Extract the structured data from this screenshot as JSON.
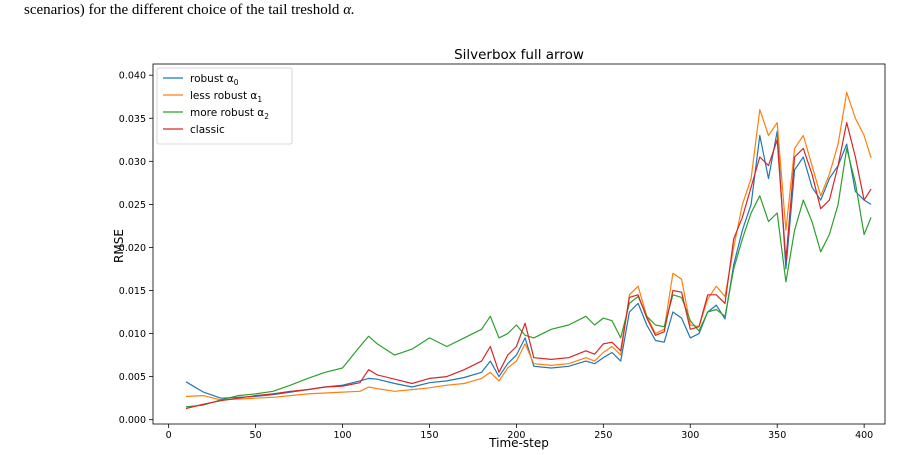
{
  "caption": {
    "text": "scenarios) for the different choice of the tail treshold",
    "symbol": "α."
  },
  "chart_data": {
    "type": "line",
    "title": "Silverbox full arrow",
    "xlabel": "Time-step",
    "ylabel": "RMSE",
    "xlim": [
      -9,
      412
    ],
    "ylim": [
      -0.0005,
      0.0413
    ],
    "xticks": [
      0,
      50,
      100,
      150,
      200,
      250,
      300,
      350,
      400
    ],
    "xtick_labels": [
      "0",
      "50",
      "100",
      "150",
      "200",
      "250",
      "300",
      "350",
      "400"
    ],
    "yticks": [
      0.0,
      0.005,
      0.01,
      0.015,
      0.02,
      0.025,
      0.03,
      0.035,
      0.04
    ],
    "ytick_labels": [
      "0.000",
      "0.005",
      "0.010",
      "0.015",
      "0.020",
      "0.025",
      "0.030",
      "0.035",
      "0.040"
    ],
    "grid": false,
    "legend_position": "upper-left",
    "x": [
      10,
      20,
      30,
      40,
      50,
      60,
      70,
      80,
      90,
      100,
      110,
      115,
      120,
      130,
      140,
      150,
      160,
      170,
      180,
      185,
      190,
      195,
      200,
      205,
      210,
      220,
      230,
      240,
      245,
      250,
      255,
      260,
      265,
      270,
      275,
      280,
      285,
      290,
      295,
      300,
      305,
      310,
      315,
      320,
      325,
      330,
      335,
      340,
      345,
      350,
      355,
      360,
      365,
      370,
      375,
      380,
      385,
      390,
      395,
      400,
      404
    ],
    "series": [
      {
        "name": "robust α",
        "name_sub": "0",
        "color": "#1f77b4",
        "values": [
          0.0044,
          0.0032,
          0.0025,
          0.0026,
          0.0027,
          0.0029,
          0.0032,
          0.0035,
          0.0038,
          0.004,
          0.0045,
          0.0048,
          0.0047,
          0.0042,
          0.0038,
          0.0043,
          0.0045,
          0.0049,
          0.0055,
          0.0068,
          0.005,
          0.0065,
          0.0075,
          0.0095,
          0.0062,
          0.006,
          0.0062,
          0.0068,
          0.0065,
          0.0072,
          0.0078,
          0.0068,
          0.0125,
          0.0135,
          0.011,
          0.0092,
          0.009,
          0.0125,
          0.0118,
          0.0095,
          0.01,
          0.0125,
          0.0133,
          0.0117,
          0.018,
          0.022,
          0.025,
          0.033,
          0.028,
          0.0335,
          0.0175,
          0.029,
          0.0305,
          0.027,
          0.0255,
          0.028,
          0.0295,
          0.032,
          0.0265,
          0.0255,
          0.025
        ]
      },
      {
        "name": "less robust α",
        "name_sub": "1",
        "color": "#ff7f0e",
        "values": [
          0.0027,
          0.0028,
          0.0023,
          0.0024,
          0.0025,
          0.0026,
          0.0028,
          0.003,
          0.0031,
          0.0032,
          0.0033,
          0.0038,
          0.0036,
          0.0033,
          0.0035,
          0.0037,
          0.004,
          0.0042,
          0.0048,
          0.0055,
          0.0045,
          0.006,
          0.0068,
          0.0088,
          0.0065,
          0.0063,
          0.0065,
          0.0072,
          0.0068,
          0.0078,
          0.0085,
          0.0075,
          0.0145,
          0.0155,
          0.012,
          0.01,
          0.0105,
          0.017,
          0.0163,
          0.011,
          0.0108,
          0.014,
          0.0155,
          0.0143,
          0.02,
          0.025,
          0.028,
          0.036,
          0.033,
          0.0345,
          0.022,
          0.0315,
          0.033,
          0.0295,
          0.026,
          0.0285,
          0.032,
          0.038,
          0.035,
          0.033,
          0.0304
        ]
      },
      {
        "name": "more robust α",
        "name_sub": "2",
        "color": "#2ca02c",
        "values": [
          0.0015,
          0.0017,
          0.0023,
          0.0028,
          0.003,
          0.0033,
          0.004,
          0.0048,
          0.0055,
          0.006,
          0.0085,
          0.0097,
          0.0088,
          0.0075,
          0.0082,
          0.0095,
          0.0085,
          0.0095,
          0.0105,
          0.012,
          0.0095,
          0.01,
          0.011,
          0.0098,
          0.0095,
          0.0105,
          0.011,
          0.012,
          0.011,
          0.0118,
          0.0115,
          0.0095,
          0.0135,
          0.0143,
          0.012,
          0.011,
          0.0108,
          0.0145,
          0.0142,
          0.0115,
          0.0103,
          0.0125,
          0.0128,
          0.012,
          0.0175,
          0.021,
          0.024,
          0.026,
          0.023,
          0.024,
          0.016,
          0.022,
          0.0255,
          0.023,
          0.0195,
          0.0215,
          0.025,
          0.0315,
          0.0275,
          0.0215,
          0.0235
        ]
      },
      {
        "name": "classic",
        "name_sub": "",
        "color": "#d62728",
        "values": [
          0.0013,
          0.0018,
          0.0022,
          0.0025,
          0.0028,
          0.003,
          0.0033,
          0.0035,
          0.0038,
          0.0039,
          0.0043,
          0.0058,
          0.0052,
          0.0047,
          0.0042,
          0.0048,
          0.005,
          0.0058,
          0.0068,
          0.0085,
          0.0055,
          0.0075,
          0.0085,
          0.0112,
          0.0072,
          0.007,
          0.0072,
          0.008,
          0.0076,
          0.0088,
          0.009,
          0.008,
          0.0142,
          0.0145,
          0.0118,
          0.0098,
          0.0102,
          0.015,
          0.0148,
          0.0105,
          0.0108,
          0.0145,
          0.0145,
          0.0135,
          0.021,
          0.0235,
          0.027,
          0.0305,
          0.0295,
          0.0325,
          0.0185,
          0.0305,
          0.0315,
          0.0285,
          0.0245,
          0.0255,
          0.0295,
          0.0345,
          0.0305,
          0.0255,
          0.0268
        ]
      }
    ]
  }
}
